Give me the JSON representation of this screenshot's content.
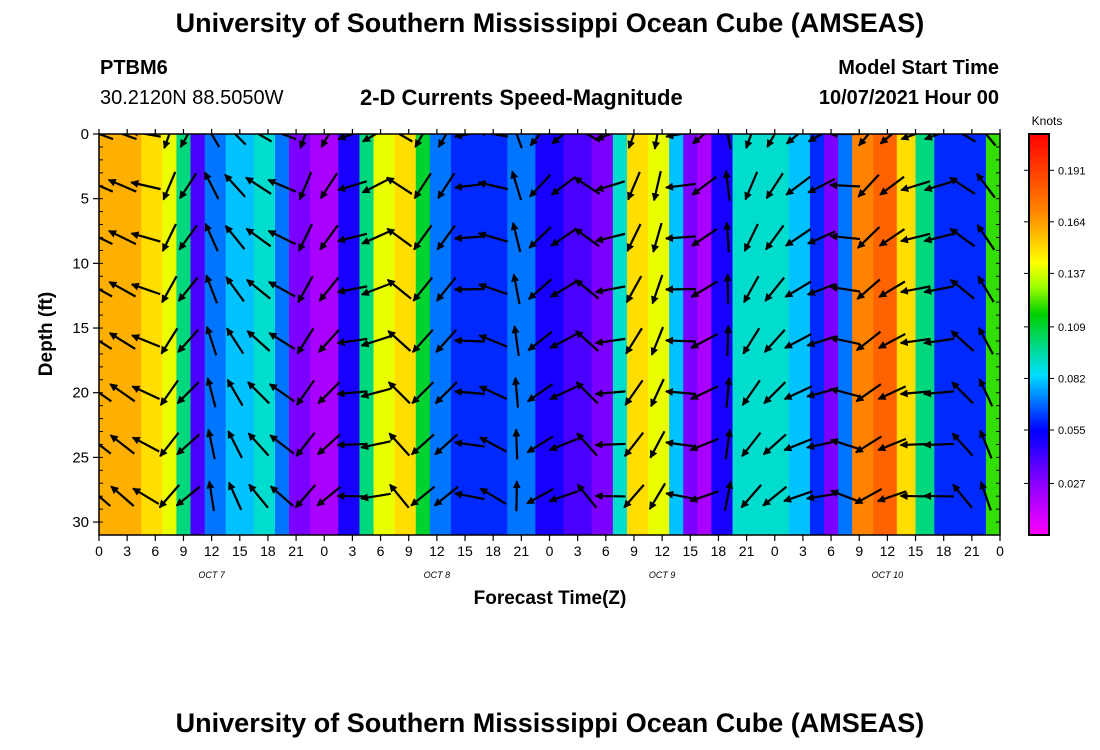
{
  "header": {
    "title": "University of Southern Mississippi Ocean Cube (AMSEAS)",
    "station_id": "PTBM6",
    "station_coords": "30.2120N  88.5050W",
    "plot_title": "2-D Currents Speed-Magnitude",
    "model_start_label": "Model Start Time",
    "model_start_value": "10/07/2021 Hour 00"
  },
  "footer": {
    "title": "University of Southern Mississippi Ocean Cube (AMSEAS)"
  },
  "chart_data": {
    "type": "heatmap",
    "title": "2-D Currents Speed-Magnitude",
    "xlabel": "Forecast Time(Z)",
    "ylabel": "Depth (ft)",
    "x_hours": [
      0,
      3,
      6,
      9,
      12,
      15,
      18,
      21,
      24,
      27,
      30,
      33,
      36,
      39,
      42,
      45,
      48,
      51,
      54,
      57,
      60,
      63,
      66,
      69,
      72,
      75,
      78,
      81,
      84,
      87,
      90,
      93,
      96
    ],
    "x_tick_labels": [
      "0",
      "3",
      "6",
      "9",
      "12",
      "15",
      "18",
      "21",
      "0",
      "3",
      "6",
      "9",
      "12",
      "15",
      "18",
      "21",
      "0",
      "3",
      "6",
      "9",
      "12",
      "15",
      "18",
      "21",
      "0",
      "3",
      "6",
      "9",
      "12",
      "15",
      "18",
      "21",
      "0"
    ],
    "day_labels": [
      {
        "label": "OCT 7",
        "hour": 12
      },
      {
        "label": "OCT 8",
        "hour": 36
      },
      {
        "label": "OCT 9",
        "hour": 60
      },
      {
        "label": "OCT 10",
        "hour": 84
      }
    ],
    "xlim": [
      0,
      96
    ],
    "y_ticks": [
      0,
      5,
      10,
      15,
      20,
      25,
      30
    ],
    "ylim": [
      0,
      31
    ],
    "colorbar": {
      "unit": "Knots",
      "ticks": [
        "0.191",
        "0.164",
        "0.137",
        "0.109",
        "0.082",
        "0.055",
        "0.027"
      ],
      "tick_values": [
        0.191,
        0.164,
        0.137,
        0.109,
        0.082,
        0.055,
        0.027
      ],
      "range": [
        0,
        0.21
      ]
    },
    "time_columns": [
      {
        "hour": 0,
        "speed": 0.16
      },
      {
        "hour": 3,
        "speed": 0.16
      },
      {
        "hour": 6,
        "speed": 0.15
      },
      {
        "hour": 7.5,
        "speed": 0.14
      },
      {
        "hour": 9,
        "speed": 0.1
      },
      {
        "hour": 10.5,
        "speed": 0.04
      },
      {
        "hour": 12,
        "speed": 0.07
      },
      {
        "hour": 15,
        "speed": 0.08
      },
      {
        "hour": 18,
        "speed": 0.09
      },
      {
        "hour": 19.5,
        "speed": 0.07
      },
      {
        "hour": 21,
        "speed": 0.03
      },
      {
        "hour": 24,
        "speed": 0.02
      },
      {
        "hour": 27,
        "speed": 0.05
      },
      {
        "hour": 28.5,
        "speed": 0.1
      },
      {
        "hour": 30,
        "speed": 0.14
      },
      {
        "hour": 33,
        "speed": 0.15
      },
      {
        "hour": 34.5,
        "speed": 0.11
      },
      {
        "hour": 36,
        "speed": 0.07
      },
      {
        "hour": 39,
        "speed": 0.06
      },
      {
        "hour": 42,
        "speed": 0.06
      },
      {
        "hour": 45,
        "speed": 0.07
      },
      {
        "hour": 48,
        "speed": 0.05
      },
      {
        "hour": 51,
        "speed": 0.04
      },
      {
        "hour": 54,
        "speed": 0.03
      },
      {
        "hour": 55.5,
        "speed": 0.09
      },
      {
        "hour": 57,
        "speed": 0.15
      },
      {
        "hour": 60,
        "speed": 0.14
      },
      {
        "hour": 61.5,
        "speed": 0.08
      },
      {
        "hour": 63,
        "speed": 0.03
      },
      {
        "hour": 64.5,
        "speed": 0.02
      },
      {
        "hour": 66,
        "speed": 0.05
      },
      {
        "hour": 69,
        "speed": 0.09
      },
      {
        "hour": 72,
        "speed": 0.09
      },
      {
        "hour": 75,
        "speed": 0.08
      },
      {
        "hour": 76.5,
        "speed": 0.06
      },
      {
        "hour": 78,
        "speed": 0.03
      },
      {
        "hour": 79.5,
        "speed": 0.07
      },
      {
        "hour": 81,
        "speed": 0.17
      },
      {
        "hour": 84,
        "speed": 0.18
      },
      {
        "hour": 86,
        "speed": 0.15
      },
      {
        "hour": 88,
        "speed": 0.1
      },
      {
        "hour": 90,
        "speed": 0.06
      },
      {
        "hour": 93,
        "speed": 0.06
      },
      {
        "hour": 96,
        "speed": 0.12
      }
    ],
    "vector_hours": [
      0,
      2.5,
      5,
      7.5,
      9.5,
      12,
      14.5,
      17,
      19.5,
      22,
      24.5,
      27,
      29.5,
      32,
      34.5,
      37,
      39.5,
      42,
      44.5,
      47,
      49.5,
      52,
      54.5,
      57,
      59.5,
      62,
      64.5,
      67,
      69.5,
      72,
      74.5,
      77,
      79.5,
      82,
      84.5,
      87,
      89.5,
      92,
      94.5
    ],
    "vector_depths_ft": [
      0,
      4,
      8,
      12,
      16,
      20,
      24,
      28
    ],
    "vector_direction_deg": [
      290,
      290,
      280,
      200,
      210,
      330,
      315,
      300,
      290,
      200,
      210,
      250,
      240,
      300,
      210,
      210,
      260,
      280,
      340,
      220,
      230,
      300,
      250,
      200,
      190,
      260,
      230,
      350,
      200,
      210,
      230,
      240,
      270,
      220,
      230,
      250,
      250,
      300,
      320
    ]
  }
}
